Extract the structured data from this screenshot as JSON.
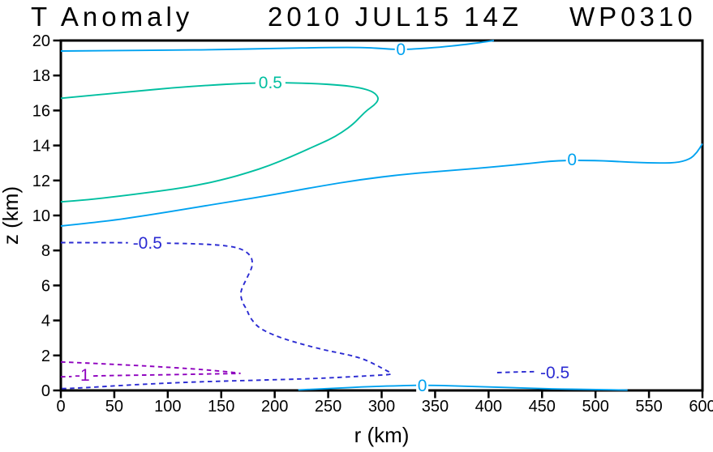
{
  "title": {
    "left": "T Anomaly",
    "center": "2010 JUL15 14Z",
    "right": "WP0310"
  },
  "chart_data": {
    "type": "contour",
    "title": "T Anomaly  2010 JUL15 14Z  WP0310",
    "xlabel": "r (km)",
    "ylabel": "z (km)",
    "xlim": [
      0,
      600
    ],
    "ylim": [
      0,
      20
    ],
    "xticks": [
      0,
      50,
      100,
      150,
      200,
      250,
      300,
      350,
      400,
      450,
      500,
      550,
      600
    ],
    "yticks": [
      0,
      2,
      4,
      6,
      8,
      10,
      12,
      14,
      16,
      18,
      20
    ],
    "grid": false,
    "legend": "none",
    "colors": {
      "zero": "#00a2f0",
      "pos05": "#00bfa0",
      "neg05": "#2b2bd2",
      "neg1": "#8e00be",
      "axis": "#000000"
    },
    "contours": [
      {
        "level": 0,
        "style": "solid",
        "color_key": "zero",
        "name": "zero-upper",
        "points": [
          [
            0,
            19.4
          ],
          [
            50,
            19.42
          ],
          [
            100,
            19.45
          ],
          [
            150,
            19.48
          ],
          [
            200,
            19.55
          ],
          [
            250,
            19.6
          ],
          [
            285,
            19.6
          ],
          [
            305,
            19.52
          ],
          [
            318,
            19.48
          ],
          [
            332,
            19.52
          ],
          [
            355,
            19.62
          ],
          [
            375,
            19.75
          ],
          [
            392,
            19.88
          ],
          [
            405,
            20.0
          ]
        ]
      },
      {
        "level": 0,
        "style": "solid",
        "color_key": "zero",
        "name": "zero-middle",
        "points": [
          [
            0,
            9.4
          ],
          [
            40,
            9.65
          ],
          [
            80,
            10.0
          ],
          [
            120,
            10.4
          ],
          [
            160,
            10.8
          ],
          [
            200,
            11.2
          ],
          [
            240,
            11.65
          ],
          [
            280,
            12.05
          ],
          [
            320,
            12.35
          ],
          [
            360,
            12.55
          ],
          [
            400,
            12.75
          ],
          [
            435,
            12.95
          ],
          [
            465,
            13.15
          ],
          [
            500,
            13.15
          ],
          [
            530,
            13.05
          ],
          [
            555,
            13.0
          ],
          [
            575,
            13.0
          ],
          [
            588,
            13.2
          ],
          [
            595,
            13.6
          ],
          [
            600,
            14.1
          ]
        ]
      },
      {
        "level": 0,
        "style": "solid",
        "color_key": "zero",
        "name": "zero-surface",
        "points": [
          [
            222,
            0.03
          ],
          [
            255,
            0.12
          ],
          [
            290,
            0.22
          ],
          [
            320,
            0.28
          ],
          [
            345,
            0.3
          ],
          [
            380,
            0.24
          ],
          [
            420,
            0.16
          ],
          [
            460,
            0.09
          ],
          [
            495,
            0.05
          ],
          [
            530,
            0.02
          ]
        ]
      },
      {
        "level": 0.5,
        "style": "solid",
        "color_key": "pos05",
        "name": "plus05-loop",
        "points": [
          [
            0,
            16.7
          ],
          [
            35,
            16.9
          ],
          [
            70,
            17.1
          ],
          [
            105,
            17.3
          ],
          [
            140,
            17.45
          ],
          [
            170,
            17.55
          ],
          [
            200,
            17.6
          ],
          [
            235,
            17.55
          ],
          [
            262,
            17.45
          ],
          [
            280,
            17.3
          ],
          [
            291,
            17.1
          ],
          [
            296,
            16.85
          ],
          [
            297,
            16.6
          ],
          [
            293,
            16.3
          ],
          [
            287,
            16.05
          ],
          [
            281,
            15.7
          ],
          [
            274,
            15.25
          ],
          [
            263,
            14.75
          ],
          [
            250,
            14.3
          ],
          [
            235,
            13.9
          ],
          [
            215,
            13.35
          ],
          [
            195,
            12.85
          ],
          [
            175,
            12.45
          ],
          [
            155,
            12.1
          ],
          [
            130,
            11.75
          ],
          [
            105,
            11.5
          ],
          [
            80,
            11.3
          ],
          [
            55,
            11.1
          ],
          [
            25,
            10.9
          ],
          [
            0,
            10.78
          ]
        ]
      },
      {
        "level": -0.5,
        "style": "dashed",
        "color_key": "neg05",
        "name": "neg05-wedge",
        "points": [
          [
            0,
            8.45
          ],
          [
            45,
            8.45
          ],
          [
            90,
            8.43
          ],
          [
            130,
            8.38
          ],
          [
            150,
            8.3
          ],
          [
            162,
            8.2
          ],
          [
            170,
            8.05
          ],
          [
            176,
            7.8
          ],
          [
            179,
            7.5
          ],
          [
            179,
            7.1
          ],
          [
            177,
            6.8
          ],
          [
            173,
            6.3
          ],
          [
            169,
            5.8
          ],
          [
            168,
            5.45
          ],
          [
            170,
            5.0
          ],
          [
            174,
            4.6
          ],
          [
            176,
            4.3
          ],
          [
            179,
            4.0
          ],
          [
            184,
            3.65
          ],
          [
            192,
            3.35
          ],
          [
            206,
            3.0
          ],
          [
            225,
            2.65
          ],
          [
            247,
            2.3
          ],
          [
            268,
            2.05
          ],
          [
            283,
            1.8
          ],
          [
            295,
            1.45
          ],
          [
            304,
            1.15
          ],
          [
            311,
            0.93
          ],
          [
            300,
            0.88
          ],
          [
            277,
            0.8
          ],
          [
            240,
            0.68
          ],
          [
            180,
            0.58
          ],
          [
            120,
            0.48
          ],
          [
            60,
            0.3
          ],
          [
            25,
            0.16
          ],
          [
            0,
            0.1
          ]
        ]
      },
      {
        "level": -0.5,
        "style": "dashed",
        "color_key": "neg05",
        "name": "neg05-segment",
        "points": [
          [
            408,
            1.02
          ],
          [
            428,
            1.06
          ],
          [
            448,
            1.08
          ]
        ]
      },
      {
        "level": -1,
        "style": "dashed",
        "color_key": "neg1",
        "name": "neg1-upper",
        "points": [
          [
            0,
            1.63
          ],
          [
            30,
            1.55
          ],
          [
            60,
            1.46
          ],
          [
            90,
            1.36
          ],
          [
            120,
            1.25
          ],
          [
            145,
            1.13
          ],
          [
            162,
            1.03
          ],
          [
            168,
            0.97
          ]
        ]
      },
      {
        "level": -1,
        "style": "dashed",
        "color_key": "neg1",
        "name": "neg1-lower",
        "points": [
          [
            0,
            0.78
          ],
          [
            30,
            0.83
          ],
          [
            60,
            0.86
          ],
          [
            90,
            0.89
          ],
          [
            120,
            0.92
          ],
          [
            145,
            0.95
          ],
          [
            168,
            0.97
          ]
        ]
      }
    ],
    "contour_labels": [
      {
        "text": "0",
        "r": 318,
        "z": 19.48,
        "color_key": "zero"
      },
      {
        "text": "0.5",
        "r": 196,
        "z": 17.6,
        "color_key": "pos05"
      },
      {
        "text": "0",
        "r": 478,
        "z": 13.2,
        "color_key": "zero"
      },
      {
        "text": "-0.5",
        "r": 81,
        "z": 8.43,
        "color_key": "neg05"
      },
      {
        "text": "-0.5",
        "r": 462,
        "z": 1.02,
        "color_key": "neg05"
      },
      {
        "text": "-1",
        "r": 20,
        "z": 0.88,
        "color_key": "neg1"
      },
      {
        "text": "0",
        "r": 338,
        "z": 0.27,
        "color_key": "zero"
      }
    ]
  }
}
